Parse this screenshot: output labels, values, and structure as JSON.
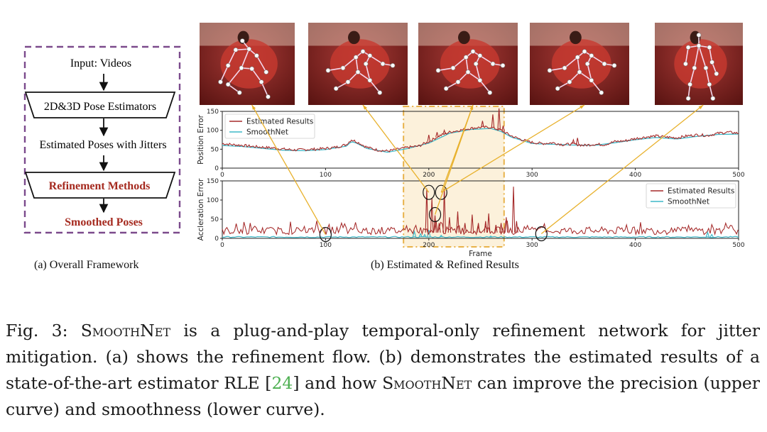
{
  "framework": {
    "input_label": "Input: Videos",
    "estimator_label": "2D&3D Pose Estimators",
    "estimated_label": "Estimated Poses with Jitters",
    "refinement_label": "Refinement Methods",
    "output_label": "Smoothed Poses",
    "accent_color": "#a52a1f",
    "border_color": "#7b4a8c"
  },
  "sublabels": {
    "a": "(a) Overall Framework",
    "b": "(b) Estimated & Refined Results"
  },
  "caption": {
    "prefix": "Fig. 3: ",
    "name": "SmoothNet",
    "part1": " is a plug-and-play temporal-only refinement network for jitter mitigation. (a) shows the refinement flow. (b) demonstrates the estimated results of a state-of-the-art estimator RLE [",
    "cite": "24",
    "part2": "] and how ",
    "part3": " can improve the precision (upper curve) and smoothness (lower curve)."
  },
  "thumbnails": [
    {
      "pose": "crouch",
      "frame": 100
    },
    {
      "pose": "bend",
      "frame": 200
    },
    {
      "pose": "bend",
      "frame": 205
    },
    {
      "pose": "bend",
      "frame": 215
    },
    {
      "pose": "stand",
      "frame": 310
    }
  ],
  "chart_data": [
    {
      "type": "line",
      "ylabel": "Position Error",
      "xlim": [
        0,
        500
      ],
      "ylim": [
        0,
        150
      ],
      "xticks": [
        0,
        100,
        200,
        300,
        400,
        500
      ],
      "yticks": [
        0,
        50,
        100,
        150
      ],
      "legend_position": "top-left",
      "series": [
        {
          "name": "Estimated Results",
          "color": "#a52a2a",
          "keypoints": [
            [
              0,
              65
            ],
            [
              10,
              62
            ],
            [
              20,
              60
            ],
            [
              30,
              57
            ],
            [
              40,
              55
            ],
            [
              50,
              53
            ],
            [
              60,
              50
            ],
            [
              70,
              48
            ],
            [
              80,
              49
            ],
            [
              90,
              50
            ],
            [
              100,
              52
            ],
            [
              110,
              55
            ],
            [
              120,
              62
            ],
            [
              125,
              75
            ],
            [
              130,
              70
            ],
            [
              140,
              55
            ],
            [
              150,
              48
            ],
            [
              160,
              45
            ],
            [
              170,
              50
            ],
            [
              180,
              55
            ],
            [
              190,
              58
            ],
            [
              200,
              70
            ],
            [
              210,
              85
            ],
            [
              220,
              95
            ],
            [
              230,
              100
            ],
            [
              240,
              105
            ],
            [
              250,
              108
            ],
            [
              260,
              108
            ],
            [
              270,
              100
            ],
            [
              280,
              85
            ],
            [
              290,
              75
            ],
            [
              300,
              68
            ],
            [
              310,
              65
            ],
            [
              320,
              67
            ],
            [
              330,
              62
            ],
            [
              340,
              64
            ],
            [
              350,
              60
            ],
            [
              360,
              63
            ],
            [
              370,
              62
            ],
            [
              380,
              70
            ],
            [
              390,
              72
            ],
            [
              400,
              78
            ],
            [
              410,
              82
            ],
            [
              420,
              85
            ],
            [
              430,
              82
            ],
            [
              440,
              80
            ],
            [
              450,
              85
            ],
            [
              460,
              88
            ],
            [
              470,
              86
            ],
            [
              480,
              92
            ],
            [
              490,
              95
            ],
            [
              500,
              92
            ]
          ]
        },
        {
          "name": "SmoothNet",
          "color": "#3fb8c8",
          "keypoints": [
            [
              0,
              60
            ],
            [
              20,
              57
            ],
            [
              40,
              52
            ],
            [
              60,
              47
            ],
            [
              80,
              46
            ],
            [
              100,
              49
            ],
            [
              120,
              58
            ],
            [
              125,
              70
            ],
            [
              130,
              66
            ],
            [
              140,
              52
            ],
            [
              160,
              42
            ],
            [
              180,
              52
            ],
            [
              200,
              66
            ],
            [
              220,
              92
            ],
            [
              240,
              102
            ],
            [
              260,
              105
            ],
            [
              270,
              97
            ],
            [
              280,
              82
            ],
            [
              300,
              65
            ],
            [
              320,
              63
            ],
            [
              340,
              61
            ],
            [
              360,
              60
            ],
            [
              380,
              67
            ],
            [
              400,
              75
            ],
            [
              420,
              81
            ],
            [
              440,
              77
            ],
            [
              460,
              84
            ],
            [
              480,
              89
            ],
            [
              500,
              90
            ]
          ]
        }
      ],
      "spikes": [
        [
          200,
          88
        ],
        [
          208,
          95
        ],
        [
          215,
          100
        ],
        [
          252,
          125
        ],
        [
          262,
          142
        ],
        [
          268,
          158
        ],
        [
          272,
          112
        ],
        [
          340,
          75
        ],
        [
          344,
          80
        ]
      ]
    },
    {
      "type": "line",
      "xlabel": "Frame",
      "ylabel": "Accleration Error",
      "xlim": [
        0,
        500
      ],
      "ylim": [
        0,
        150
      ],
      "xticks": [
        0,
        100,
        200,
        300,
        400,
        500
      ],
      "yticks": [
        0,
        50,
        100,
        150
      ],
      "legend_position": "top-right",
      "series": [
        {
          "name": "Estimated Results",
          "color": "#a52a2a"
        },
        {
          "name": "SmoothNet",
          "color": "#3fb8c8"
        }
      ],
      "spikes": [
        [
          198,
          130
        ],
        [
          203,
          105
        ],
        [
          206,
          60
        ],
        [
          210,
          40
        ],
        [
          215,
          130
        ],
        [
          220,
          55
        ],
        [
          228,
          70
        ],
        [
          235,
          40
        ],
        [
          242,
          62
        ],
        [
          248,
          40
        ],
        [
          255,
          45
        ],
        [
          258,
          65
        ],
        [
          265,
          35
        ],
        [
          270,
          40
        ],
        [
          275,
          55
        ],
        [
          282,
          135
        ],
        [
          285,
          45
        ]
      ],
      "smooth_spikes": [
        [
          186,
          18
        ],
        [
          192,
          12
        ],
        [
          196,
          10
        ],
        [
          200,
          22
        ],
        [
          212,
          8
        ],
        [
          260,
          6
        ],
        [
          470,
          16
        ],
        [
          474,
          10
        ]
      ]
    }
  ],
  "highlight": {
    "x_start": 192,
    "x_end": 255,
    "color": "#e8b24a"
  },
  "markers": [
    [
      100,
      10
    ],
    [
      200,
      120
    ],
    [
      212,
      120
    ],
    [
      206,
      62
    ],
    [
      309,
      12
    ]
  ]
}
